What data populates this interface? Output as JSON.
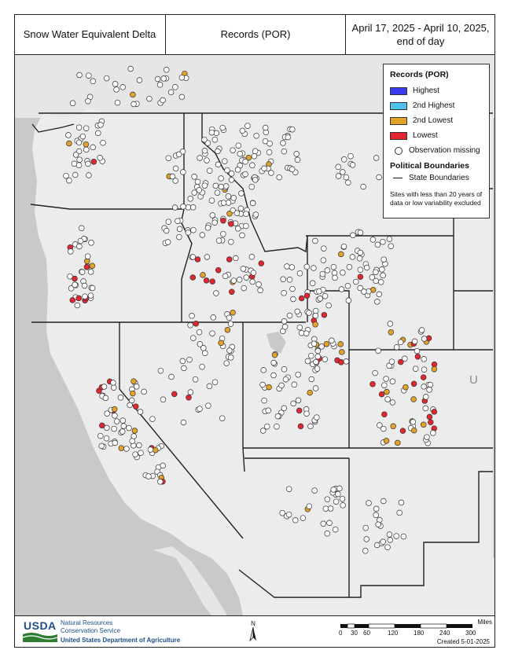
{
  "header": {
    "title": "Snow Water Equivalent Delta",
    "subtitle": "Records (POR)",
    "date_line1": "April 17, 2025 - April 10, 2025,",
    "date_line2": "end of day"
  },
  "legend": {
    "title": "Records (POR)",
    "items": [
      {
        "label": "Highest",
        "color": "#3a3af0"
      },
      {
        "label": "2nd Highest",
        "color": "#4fc3ee"
      },
      {
        "label": "2nd Lowest",
        "color": "#e3a22a"
      },
      {
        "label": "Lowest",
        "color": "#e32630"
      }
    ],
    "missing_label": "Observation missing",
    "boundaries_title": "Political Boundaries",
    "boundary_label": "State Boundaries",
    "note": "Sites with less than 20 years of data or low variability excluded"
  },
  "map": {
    "edge_label": "U N",
    "colors": {
      "ocean": "#c9c9c9",
      "land": "#ececec",
      "outside_land": "#e6e6e6",
      "boundary": "#222222",
      "lowest": "#e32630",
      "second_lowest": "#e3a22a",
      "missing": "#ffffff"
    }
  },
  "footer": {
    "logo_text": "USDA",
    "agency_line1": "Natural Resources",
    "agency_line2": "Conservation Service",
    "department": "United States Department of Agriculture",
    "north_label": "N",
    "scale_unit": "Miles",
    "scale_ticks": [
      "0",
      "30",
      "60",
      "120",
      "180",
      "240",
      "300"
    ],
    "created": "Created 5-01-2025"
  }
}
